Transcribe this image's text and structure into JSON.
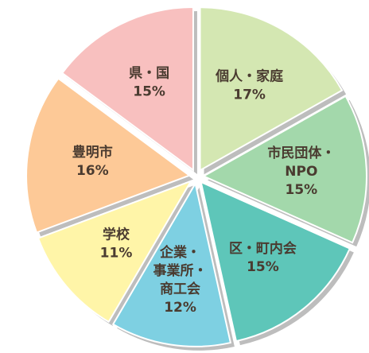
{
  "chart_data": {
    "type": "pie",
    "categories": [
      [
        "個人・家庭"
      ],
      [
        "市民団体・",
        "NPO"
      ],
      [
        "区・町内会"
      ],
      [
        "企業・",
        "事業所・",
        "商工会"
      ],
      [
        "学校"
      ],
      [
        "豊明市"
      ],
      [
        "県・国"
      ]
    ],
    "values": [
      17,
      15,
      15,
      12,
      11,
      16,
      15
    ],
    "value_labels": [
      "17%",
      "15%",
      "15%",
      "12%",
      "11%",
      "16%",
      "15%"
    ],
    "colors": [
      "#d4e7b2",
      "#a3d8ab",
      "#5ec6b9",
      "#7ed0e2",
      "#fff5a8",
      "#fdc997",
      "#f8c0bf"
    ]
  }
}
